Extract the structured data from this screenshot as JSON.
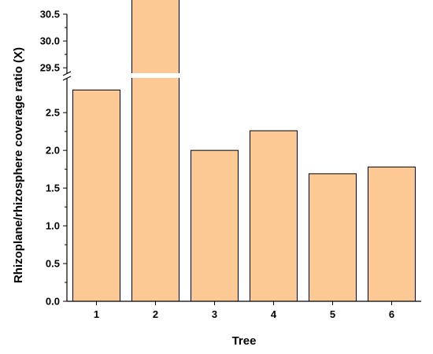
{
  "chart_data": {
    "type": "bar",
    "xlabel": "Tree",
    "ylabel": "Rhizoplane/rhizosphere  coverage ratio (X)",
    "categories": [
      "1",
      "2",
      "3",
      "4",
      "5",
      "6"
    ],
    "values": [
      2.8,
      31.1,
      2.0,
      2.26,
      1.69,
      1.78
    ],
    "axis_break": true,
    "ylim_lower": [
      0,
      2.95
    ],
    "ylim_upper": [
      29.4,
      30.5
    ],
    "y_ticks_lower": [
      "0.0",
      "0.5",
      "1.0",
      "1.5",
      "2.0",
      "2.5"
    ],
    "y_ticks_upper": [
      "29.5",
      "30.0",
      "30.5"
    ],
    "bar_color": "#fcc994",
    "bar_edge_color": "#000000",
    "grid": false,
    "legend": "none"
  }
}
